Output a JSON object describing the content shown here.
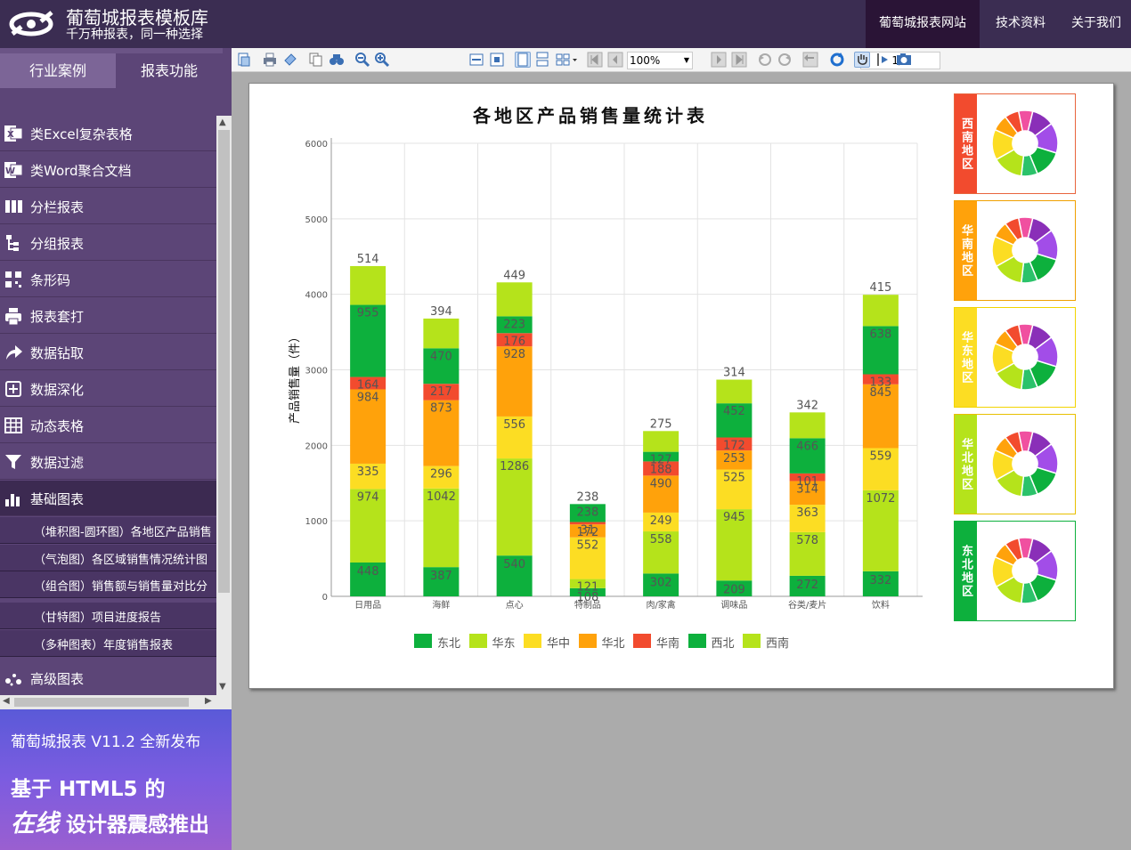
{
  "app": {
    "title": "葡萄城报表模板库",
    "subtitle": "千万种报表，同一种选择"
  },
  "topnav": [
    "葡萄城报表网站",
    "技术资料",
    "关于我们"
  ],
  "sidebar": {
    "tabs": [
      "行业案例",
      "报表功能"
    ],
    "items": [
      {
        "label": "类Excel复杂表格",
        "icon": "excel-icon"
      },
      {
        "label": "类Word聚合文档",
        "icon": "word-icon"
      },
      {
        "label": "分栏报表",
        "icon": "columns-icon"
      },
      {
        "label": "分组报表",
        "icon": "group-icon"
      },
      {
        "label": "条形码",
        "icon": "qrcode-icon"
      },
      {
        "label": "报表套打",
        "icon": "printer-icon"
      },
      {
        "label": "数据钻取",
        "icon": "share-arrow-icon"
      },
      {
        "label": "数据深化",
        "icon": "plus-square-icon"
      },
      {
        "label": "动态表格",
        "icon": "table-icon"
      },
      {
        "label": "数据过滤",
        "icon": "filter-icon"
      },
      {
        "label": "基础图表",
        "icon": "bar-chart-icon"
      }
    ],
    "subitems": [
      "（堆积图-圆环图）各地区产品销售",
      "（气泡图）各区域销售情况统计图",
      "（组合图）销售额与销售量对比分",
      "（甘特图）项目进度报告",
      "（多种图表）年度销售报表"
    ],
    "last_item": {
      "label": "高级图表",
      "icon": "scatter-icon"
    }
  },
  "promo": {
    "line1": "葡萄城报表 V11.2 全新发布",
    "line2": "基于 HTML5 的",
    "line3_em": "在线",
    "line3": " 设计器震感推出"
  },
  "toolbar": {
    "zoom": "100%",
    "page": "1/1"
  },
  "colors": {
    "东北": "#0db03d",
    "华东": "#b5e31b",
    "华中": "#fcdd23",
    "华北": "#ffa20b",
    "华南": "#f24b2e",
    "西北": "#0db03d",
    "西南": "#b5e31b"
  },
  "chart_data": {
    "type": "bar",
    "title": "各地区产品销售量统计表",
    "ylabel": "产品销售量（件）",
    "xlabel": "",
    "ylim": [
      0,
      6000
    ],
    "yticks": [
      0,
      1000,
      2000,
      3000,
      4000,
      5000,
      6000
    ],
    "categories": [
      "日用品",
      "海鲜",
      "点心",
      "特制品",
      "肉/家禽",
      "调味品",
      "谷类/麦片",
      "饮料"
    ],
    "series": [
      {
        "name": "东北",
        "values": [
          448,
          387,
          540,
          108,
          302,
          209,
          272,
          332
        ]
      },
      {
        "name": "华东",
        "values": [
          974,
          1042,
          1286,
          121,
          558,
          945,
          578,
          1072
        ]
      },
      {
        "name": "华中",
        "values": [
          335,
          296,
          556,
          552,
          249,
          525,
          363,
          559
        ]
      },
      {
        "name": "华北",
        "values": [
          984,
          873,
          928,
          172,
          490,
          253,
          314,
          845
        ]
      },
      {
        "name": "华南",
        "values": [
          164,
          217,
          176,
          31,
          188,
          172,
          101,
          133
        ]
      },
      {
        "name": "西北",
        "values": [
          955,
          470,
          223,
          238,
          127,
          452,
          466,
          638
        ]
      },
      {
        "name": "西南",
        "values": [
          514,
          394,
          449,
          0,
          275,
          314,
          342,
          415
        ]
      }
    ],
    "top_labels": [
      514,
      394,
      449,
      238,
      275,
      314,
      342,
      415
    ],
    "legend": [
      "东北",
      "华东",
      "华中",
      "华北",
      "华南",
      "西北",
      "西南"
    ],
    "grid": true,
    "legend_position": "bottom"
  },
  "donuts": [
    {
      "region": "西南地区",
      "color": "#f24b2e"
    },
    {
      "region": "华南地区",
      "color": "#ffa20b"
    },
    {
      "region": "华东地区",
      "color": "#fcdd23"
    },
    {
      "region": "华北地区",
      "color": "#b5e31b"
    },
    {
      "region": "东北地区",
      "color": "#0db03d"
    }
  ]
}
